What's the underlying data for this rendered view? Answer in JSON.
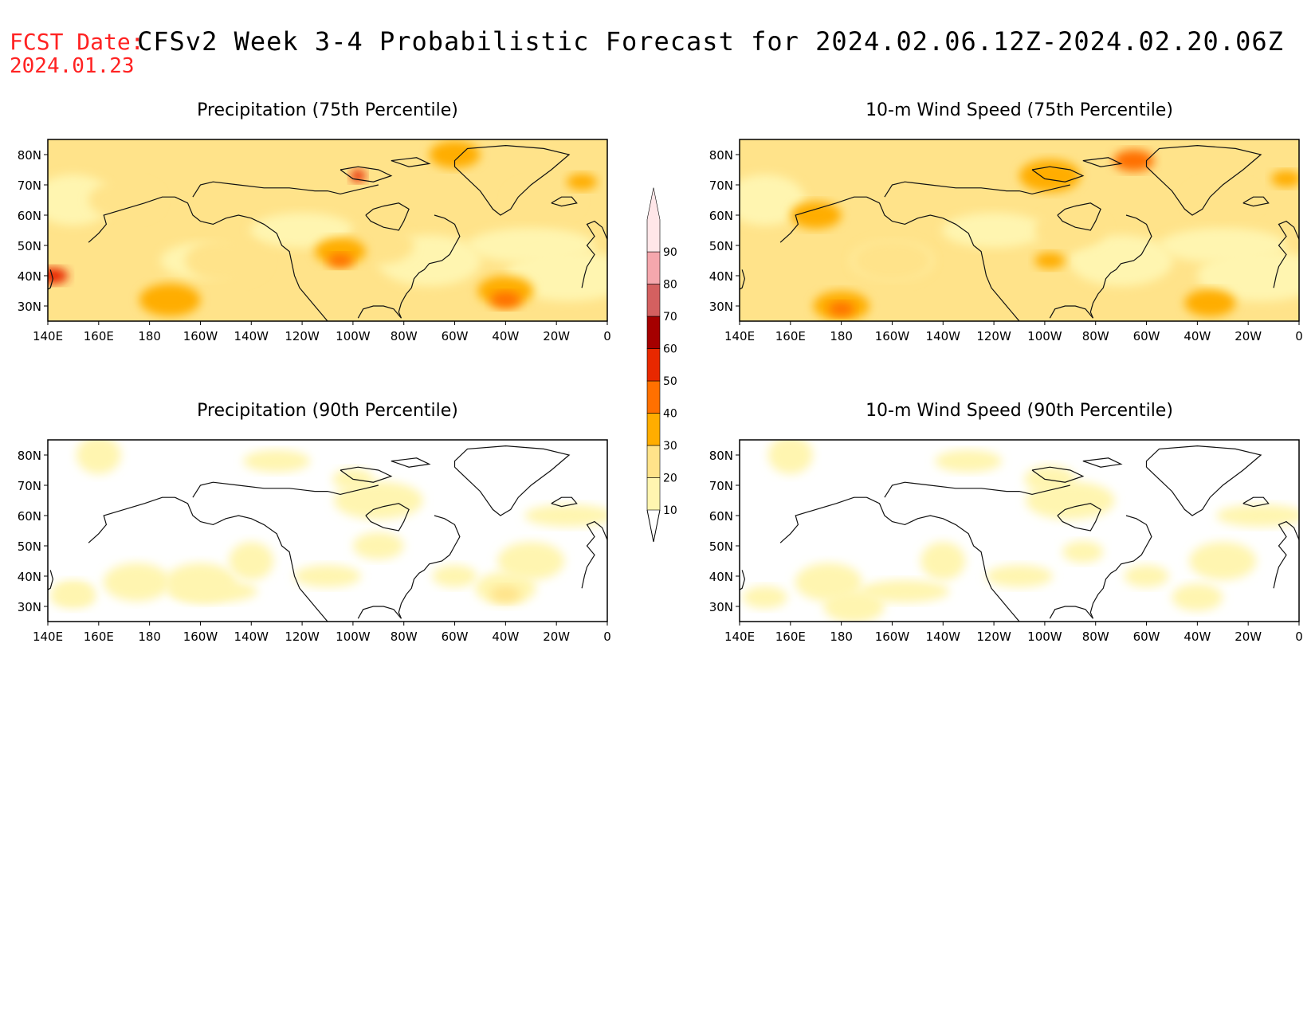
{
  "header": {
    "fcst_label": "FCST Date:",
    "fcst_date": "2024.01.23",
    "title": "CFSv2 Week 3-4 Probabilistic Forecast for 2024.02.06.12Z-2024.02.20.06Z"
  },
  "panels": [
    {
      "title": "Precipitation (75th Percentile)",
      "variable": "precipitation",
      "percentile": 75
    },
    {
      "title": "10-m Wind Speed (75th Percentile)",
      "variable": "wind",
      "percentile": 75
    },
    {
      "title": "Precipitation (90th Percentile)",
      "variable": "precipitation",
      "percentile": 90
    },
    {
      "title": "10-m Wind Speed (90th Percentile)",
      "variable": "wind",
      "percentile": 90
    }
  ],
  "axes": {
    "lon_labels": [
      "140E",
      "160E",
      "180",
      "160W",
      "140W",
      "120W",
      "100W",
      "80W",
      "60W",
      "40W",
      "20W",
      "0"
    ],
    "lat_labels": [
      "80N",
      "70N",
      "60N",
      "50N",
      "40N",
      "30N"
    ],
    "lon_range": [
      140,
      360
    ],
    "lat_range": [
      25,
      85
    ]
  },
  "colorbar": {
    "levels": [
      "10",
      "20",
      "30",
      "40",
      "50",
      "60",
      "70",
      "80",
      "90"
    ],
    "colors": [
      "#fff5b0",
      "#ffe38a",
      "#ffad00",
      "#ff7000",
      "#e82800",
      "#a50000",
      "#d46060",
      "#f5a7ad",
      "#ffe6e8"
    ]
  },
  "map_fields": {
    "precip_75": [
      {
        "lon": 142,
        "lat": 40,
        "r": 6,
        "level": 5
      },
      {
        "lon": 255,
        "lat": 45,
        "r": 5,
        "level": 4
      },
      {
        "lon": 262,
        "lat": 73,
        "r": 3,
        "level": 5
      },
      {
        "lon": 320,
        "lat": 32,
        "r": 6,
        "level": 4
      },
      {
        "lon": 188,
        "lat": 32,
        "r": 12,
        "level": 3
      },
      {
        "lon": 320,
        "lat": 35,
        "r": 11,
        "level": 3
      },
      {
        "lon": 255,
        "lat": 48,
        "r": 10,
        "level": 3
      },
      {
        "lon": 300,
        "lat": 80,
        "r": 10,
        "level": 3
      },
      {
        "lon": 350,
        "lat": 71,
        "r": 6,
        "level": 3
      },
      {
        "lon": 335,
        "lat": 65,
        "r": 14,
        "level": 2
      },
      {
        "lon": 210,
        "lat": 45,
        "r": 16,
        "level": 2
      },
      {
        "lon": 270,
        "lat": 50,
        "r": 14,
        "level": 2
      },
      {
        "lon": 170,
        "lat": 65,
        "r": 14,
        "level": 2
      }
    ],
    "wind_75": [
      {
        "lon": 180,
        "lat": 30,
        "r": 11,
        "level": 3
      },
      {
        "lon": 180,
        "lat": 29,
        "r": 5,
        "level": 4
      },
      {
        "lon": 325,
        "lat": 31,
        "r": 10,
        "level": 3
      },
      {
        "lon": 262,
        "lat": 73,
        "r": 12,
        "level": 3
      },
      {
        "lon": 295,
        "lat": 78,
        "r": 8,
        "level": 4
      },
      {
        "lon": 262,
        "lat": 45,
        "r": 6,
        "level": 3
      },
      {
        "lon": 170,
        "lat": 60,
        "r": 10,
        "level": 3
      },
      {
        "lon": 355,
        "lat": 72,
        "r": 6,
        "level": 3
      },
      {
        "lon": 330,
        "lat": 65,
        "r": 14,
        "level": 2
      },
      {
        "lon": 200,
        "lat": 45,
        "r": 16,
        "level": 2
      },
      {
        "lon": 270,
        "lat": 55,
        "r": 14,
        "level": 2
      }
    ],
    "precip_90": [
      {
        "lon": 320,
        "lat": 34,
        "r": 6,
        "level": 2
      },
      {
        "lon": 200,
        "lat": 38,
        "r": 14,
        "level": 1
      },
      {
        "lon": 320,
        "lat": 36,
        "r": 12,
        "level": 1
      },
      {
        "lon": 260,
        "lat": 72,
        "r": 8,
        "level": 1
      },
      {
        "lon": 270,
        "lat": 50,
        "r": 10,
        "level": 1
      },
      {
        "lon": 150,
        "lat": 35,
        "r": 8,
        "level": 1
      }
    ],
    "wind_90": [
      {
        "lon": 185,
        "lat": 30,
        "r": 12,
        "level": 1
      },
      {
        "lon": 320,
        "lat": 33,
        "r": 10,
        "level": 1
      },
      {
        "lon": 262,
        "lat": 72,
        "r": 10,
        "level": 1
      },
      {
        "lon": 275,
        "lat": 48,
        "r": 8,
        "level": 1
      }
    ]
  }
}
